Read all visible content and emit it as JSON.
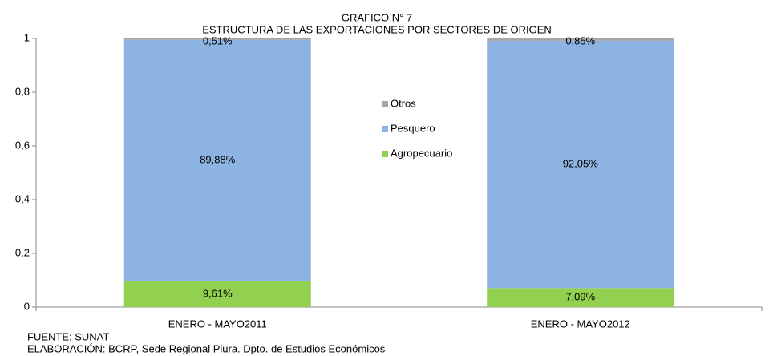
{
  "chart_data": {
    "type": "stacked_bar",
    "title": "GRAFICO N° 7",
    "subtitle": "ESTRUCTURA DE LAS EXPORTACIONES POR SECTORES DE ORIGEN",
    "categories": [
      "ENERO - MAYO2011",
      "ENERO - MAYO2012"
    ],
    "series": [
      {
        "name": "Agropecuario",
        "color": "#92d050",
        "values": [
          0.0961,
          0.0709
        ],
        "value_labels": [
          "9,61%",
          "7,09%"
        ]
      },
      {
        "name": "Pesquero",
        "color": "#8db3e2",
        "values": [
          0.8988,
          0.9205
        ],
        "value_labels": [
          "89,88%",
          "92,05%"
        ]
      },
      {
        "name": "Otros",
        "color": "#a6a6a6",
        "values": [
          0.0051,
          0.0085
        ],
        "value_labels": [
          "0,51%",
          "0,85%"
        ]
      }
    ],
    "ylim": [
      0,
      1
    ],
    "yticks": [
      0,
      {
        "value": 0.2,
        "label": "0,2"
      },
      {
        "value": 0.4,
        "label": "0,4"
      },
      {
        "value": 0.6,
        "label": "0,6"
      },
      {
        "value": 0.8,
        "label": "0,8"
      },
      1
    ],
    "grid": false,
    "legend": "center",
    "notes": [
      "FUENTE: SUNAT",
      "ELABORACIÓN: BCRP, Sede Regional Piura. Dpto. de Estudios Económicos"
    ]
  }
}
